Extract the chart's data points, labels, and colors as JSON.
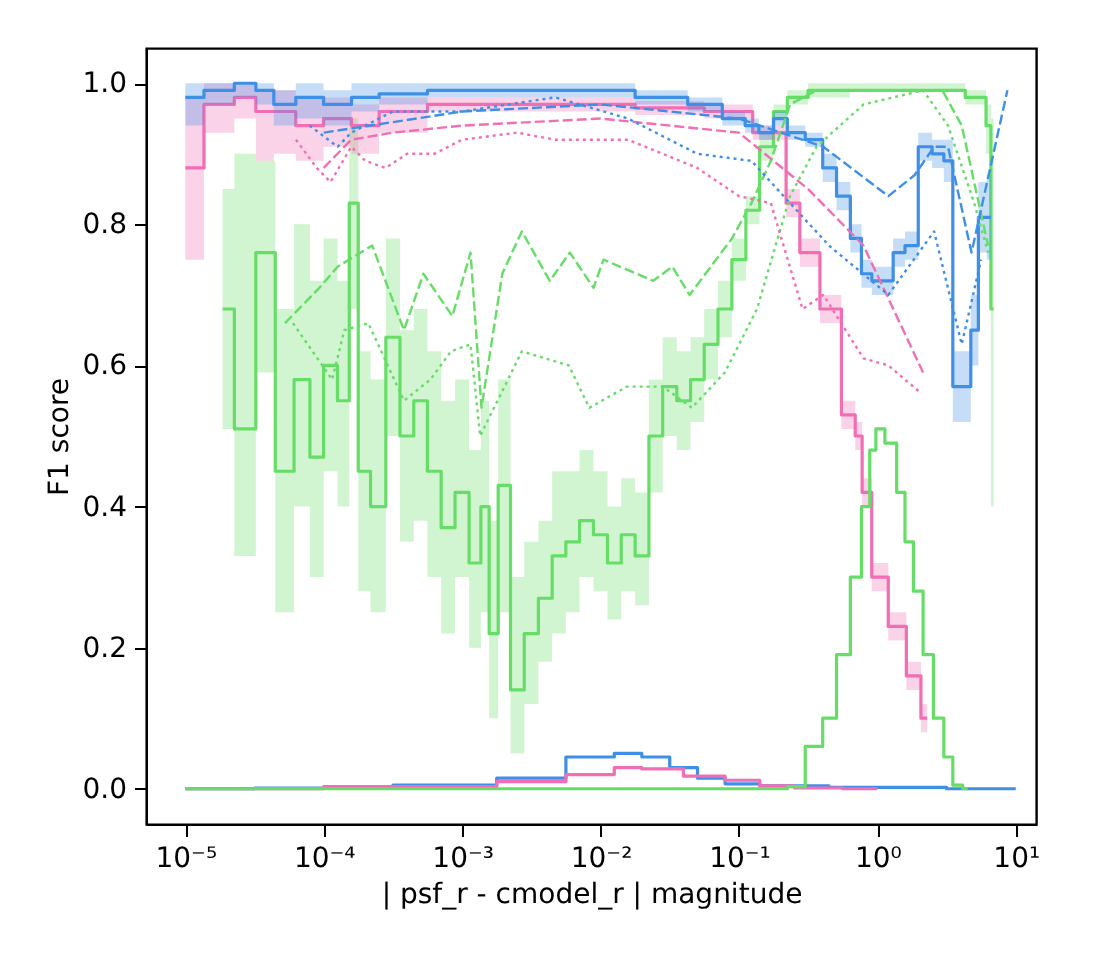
{
  "chart_data": {
    "type": "step",
    "xlabel": "| psf_r - cmodel_r | magnitude",
    "ylabel": "F1 score",
    "log": "x",
    "grid": false,
    "xlim": [
      5.2e-06,
      14
    ],
    "ylim": [
      -0.05,
      1.05
    ],
    "xticks": [
      {
        "value": 1e-05,
        "label": "10⁻⁵"
      },
      {
        "value": 0.0001,
        "label": "10⁻⁴"
      },
      {
        "value": 0.001,
        "label": "10⁻³"
      },
      {
        "value": 0.01,
        "label": "10⁻²"
      },
      {
        "value": 0.1,
        "label": "10⁻¹"
      },
      {
        "value": 1,
        "label": "10⁰"
      },
      {
        "value": 10,
        "label": "10¹"
      }
    ],
    "yticks": [
      {
        "value": 0,
        "label": "0.0"
      },
      {
        "value": 0.2,
        "label": "0.2"
      },
      {
        "value": 0.4,
        "label": "0.4"
      },
      {
        "value": 0.6,
        "label": "0.6"
      },
      {
        "value": 0.8,
        "label": "0.8"
      },
      {
        "value": 1,
        "label": "1.0"
      }
    ],
    "series": [
      {
        "color": "#66dd66",
        "line_style": "solid",
        "x": [
          1.86e-05,
          2.75e-05,
          3.8e-05,
          5.25e-05,
          7.1e-05,
          8.9e-05,
          0.000112,
          0.000141,
          0.000166,
          0.00019,
          0.00025,
          0.000316,
          0.0004,
          0.0005,
          0.00063,
          0.00079,
          0.001,
          0.00126,
          0.00148,
          0.00166,
          0.002,
          0.0025,
          0.00316,
          0.004,
          0.005,
          0.0063,
          0.0079,
          0.01,
          0.0126,
          0.0158,
          0.02,
          0.025,
          0.0316,
          0.04,
          0.05,
          0.063,
          0.079,
          0.1,
          0.126,
          0.158,
          0.2,
          0.25,
          0.4,
          1,
          3.16,
          5.89,
          6.31,
          6.92
        ],
        "values": [
          0.68,
          0.51,
          0.76,
          0.45,
          0.58,
          0.47,
          0.6,
          0.55,
          0.83,
          0.45,
          0.4,
          0.64,
          0.5,
          0.55,
          0.45,
          0.37,
          0.42,
          0.32,
          0.4,
          0.22,
          0.43,
          0.14,
          0.22,
          0.27,
          0.33,
          0.35,
          0.38,
          0.36,
          0.32,
          0.36,
          0.33,
          0.5,
          0.57,
          0.55,
          0.58,
          0.63,
          0.68,
          0.75,
          0.82,
          0.91,
          0.96,
          0.98,
          0.99,
          0.99,
          0.99,
          0.98,
          0.94,
          0.68
        ],
        "lower": [
          0.51,
          0.33,
          0.59,
          0.25,
          0.4,
          0.3,
          0.45,
          0.4,
          0.68,
          0.28,
          0.25,
          0.5,
          0.35,
          0.38,
          0.3,
          0.22,
          0.3,
          0.2,
          0.25,
          0.1,
          0.25,
          0.05,
          0.12,
          0.18,
          0.22,
          0.25,
          0.3,
          0.28,
          0.24,
          0.28,
          0.26,
          0.42,
          0.5,
          0.48,
          0.52,
          0.58,
          0.64,
          0.72,
          0.8,
          0.89,
          0.95,
          0.97,
          0.98,
          0.99,
          0.99,
          0.97,
          0.9,
          0.4
        ],
        "upper": [
          0.85,
          0.9,
          0.89,
          0.68,
          0.8,
          0.72,
          0.78,
          0.72,
          0.95,
          0.62,
          0.58,
          0.78,
          0.65,
          0.68,
          0.62,
          0.55,
          0.58,
          0.48,
          0.55,
          0.38,
          0.58,
          0.3,
          0.35,
          0.38,
          0.45,
          0.45,
          0.48,
          0.45,
          0.4,
          0.44,
          0.42,
          0.58,
          0.64,
          0.62,
          0.64,
          0.68,
          0.72,
          0.78,
          0.84,
          0.93,
          0.97,
          0.99,
          1.0,
          1.0,
          1.0,
          0.99,
          0.97,
          0.95
        ]
      },
      {
        "color": "#f26eb4",
        "line_style": "solid",
        "x": [
          1e-05,
          1.86e-05,
          2.75e-05,
          3.8e-05,
          5e-05,
          7.9e-05,
          0.000126,
          0.0002,
          0.000316,
          0.001,
          0.00316,
          0.01,
          0.0316,
          0.1,
          0.158,
          0.2,
          0.24,
          0.316,
          0.468,
          0.646,
          0.741,
          0.813,
          1.02,
          1.41,
          1.86,
          2.29
        ],
        "values": [
          0.88,
          0.97,
          0.98,
          0.96,
          0.96,
          0.94,
          0.95,
          0.94,
          0.96,
          0.97,
          0.97,
          0.97,
          0.965,
          0.96,
          0.93,
          0.93,
          0.83,
          0.76,
          0.68,
          0.53,
          0.5,
          0.42,
          0.3,
          0.23,
          0.16,
          0.1
        ],
        "lower": [
          0.75,
          0.93,
          0.95,
          0.89,
          0.9,
          0.89,
          0.91,
          0.9,
          0.93,
          0.96,
          0.96,
          0.96,
          0.955,
          0.95,
          0.92,
          0.92,
          0.81,
          0.74,
          0.66,
          0.51,
          0.48,
          0.4,
          0.28,
          0.21,
          0.14,
          0.08
        ],
        "upper": [
          0.98,
          1.0,
          1.0,
          0.99,
          0.99,
          0.98,
          0.98,
          0.97,
          0.98,
          0.98,
          0.98,
          0.98,
          0.975,
          0.97,
          0.94,
          0.94,
          0.85,
          0.78,
          0.7,
          0.55,
          0.52,
          0.44,
          0.32,
          0.25,
          0.18,
          0.12
        ]
      },
      {
        "color": "#3f8fe6",
        "line_style": "solid",
        "x": [
          1e-05,
          1.86e-05,
          2.75e-05,
          3.8e-05,
          5e-05,
          7.9e-05,
          0.000126,
          0.0002,
          0.000316,
          0.001,
          0.00316,
          0.01,
          0.0316,
          0.0575,
          0.1,
          0.123,
          0.158,
          0.2,
          0.25,
          0.363,
          0.447,
          0.575,
          0.708,
          0.832,
          1,
          1.2,
          1.41,
          1.78,
          2.19,
          2.82,
          3.24,
          3.8,
          4.47,
          5.01,
          5.75,
          6.61
        ],
        "values": [
          0.98,
          0.99,
          1.0,
          0.99,
          0.97,
          0.98,
          0.97,
          0.98,
          0.985,
          0.99,
          0.99,
          0.99,
          0.98,
          0.97,
          0.95,
          0.94,
          0.93,
          0.95,
          0.93,
          0.92,
          0.88,
          0.84,
          0.78,
          0.73,
          0.72,
          0.72,
          0.76,
          0.77,
          0.91,
          0.9,
          0.89,
          0.57,
          0.57,
          0.65,
          0.81,
          0.81
        ],
        "lower": [
          0.94,
          0.97,
          0.98,
          0.97,
          0.94,
          0.95,
          0.94,
          0.96,
          0.97,
          0.98,
          0.98,
          0.98,
          0.97,
          0.96,
          0.94,
          0.93,
          0.92,
          0.94,
          0.92,
          0.91,
          0.86,
          0.82,
          0.76,
          0.71,
          0.7,
          0.7,
          0.74,
          0.75,
          0.89,
          0.88,
          0.86,
          0.52,
          0.52,
          0.6,
          0.76,
          0.75
        ],
        "upper": [
          1.0,
          1.0,
          1.0,
          1.0,
          0.99,
          1.0,
          0.99,
          1.0,
          1.0,
          1.0,
          1.0,
          1.0,
          0.99,
          0.98,
          0.96,
          0.95,
          0.94,
          0.96,
          0.94,
          0.93,
          0.9,
          0.86,
          0.8,
          0.75,
          0.74,
          0.74,
          0.78,
          0.79,
          0.93,
          0.92,
          0.92,
          0.62,
          0.62,
          0.7,
          0.86,
          0.87
        ]
      },
      {
        "type": "line",
        "color": "#66dd66",
        "line_style": "dashed",
        "x": [
          5.25e-05,
          9.3e-05,
          0.000126,
          0.000224,
          0.00038,
          0.000525,
          0.00085,
          0.00115,
          0.00138,
          0.00195,
          0.0027,
          0.0043,
          0.006,
          0.0089,
          0.0105,
          0.024,
          0.033,
          0.044,
          0.089,
          0.123,
          0.17,
          0.234,
          0.363,
          1,
          2.95,
          4.07,
          6.31
        ],
        "values": [
          0.66,
          0.71,
          0.74,
          0.77,
          0.65,
          0.73,
          0.67,
          0.76,
          0.54,
          0.73,
          0.79,
          0.72,
          0.76,
          0.71,
          0.75,
          0.72,
          0.74,
          0.7,
          0.78,
          0.83,
          0.89,
          0.97,
          0.99,
          0.99,
          0.99,
          0.94,
          0.77
        ]
      },
      {
        "type": "line",
        "color": "#66dd66",
        "line_style": "dotted",
        "x": [
          6e-05,
          8.3e-05,
          0.000115,
          0.000141,
          0.00021,
          0.00038,
          0.00059,
          0.00083,
          0.00115,
          0.00135,
          0.0027,
          0.0059,
          0.0083,
          0.0155,
          0.0282,
          0.0457,
          0.079,
          0.135,
          0.234,
          0.363,
          0.794,
          2.14,
          3.24,
          5.01,
          6.31
        ],
        "values": [
          0.66,
          0.62,
          0.58,
          0.65,
          0.66,
          0.55,
          0.58,
          0.62,
          0.63,
          0.5,
          0.62,
          0.6,
          0.54,
          0.57,
          0.57,
          0.54,
          0.59,
          0.68,
          0.84,
          0.91,
          0.97,
          0.99,
          0.94,
          0.83,
          0.76
        ]
      },
      {
        "type": "line",
        "color": "#f26eb4",
        "line_style": "dashed",
        "x": [
          0.0001,
          0.000158,
          0.000316,
          0.001,
          0.01,
          0.1,
          0.316,
          0.794,
          2.14
        ],
        "values": [
          0.88,
          0.92,
          0.93,
          0.94,
          0.95,
          0.93,
          0.85,
          0.77,
          0.59
        ]
      },
      {
        "type": "line",
        "color": "#f26eb4",
        "line_style": "dotted",
        "x": [
          6.3e-05,
          8.9e-05,
          0.000112,
          0.000158,
          0.0002,
          0.00028,
          0.0004,
          0.00063,
          0.001,
          0.0025,
          0.0047,
          0.0158,
          0.05,
          0.1,
          0.17,
          0.288,
          0.407,
          0.794,
          1.2,
          2.09
        ],
        "values": [
          0.92,
          0.88,
          0.86,
          0.91,
          0.89,
          0.88,
          0.9,
          0.9,
          0.92,
          0.93,
          0.92,
          0.92,
          0.88,
          0.84,
          0.83,
          0.68,
          0.7,
          0.61,
          0.6,
          0.56
        ]
      },
      {
        "type": "line",
        "color": "#3f8fe6",
        "line_style": "dashed",
        "x": [
          0.0001,
          0.001,
          0.01,
          0.1,
          0.407,
          1.2,
          1.86,
          2.57,
          3.24,
          4.79,
          8.7
        ],
        "values": [
          0.93,
          0.96,
          0.97,
          0.95,
          0.91,
          0.84,
          0.87,
          0.91,
          0.91,
          0.76,
          0.99
        ]
      },
      {
        "type": "line",
        "color": "#3f8fe6",
        "line_style": "dotted",
        "x": [
          7.9e-05,
          0.000126,
          0.000158,
          0.000316,
          0.001,
          0.0047,
          0.0158,
          0.05,
          0.123,
          0.447,
          1.2,
          2.57,
          4.07,
          5.62
        ],
        "values": [
          0.94,
          0.91,
          0.93,
          0.96,
          0.96,
          0.98,
          0.95,
          0.9,
          0.89,
          0.77,
          0.7,
          0.79,
          0.63,
          0.75
        ]
      },
      {
        "color": "#3f8fe6",
        "line_style": "solid",
        "x": [
          1e-05,
          0.0001,
          0.001,
          0.00316,
          0.01,
          0.0158,
          0.025,
          0.04,
          0.063,
          0.1,
          0.2,
          1,
          10
        ],
        "values": [
          0,
          0.001,
          0.005,
          0.015,
          0.045,
          0.05,
          0.045,
          0.03,
          0.015,
          0.007,
          0.004,
          0.002,
          0
        ]
      },
      {
        "color": "#f26eb4",
        "line_style": "solid",
        "x": [
          1e-05,
          0.001,
          0.00316,
          0.01,
          0.0158,
          0.025,
          0.063,
          0.1,
          0.2,
          0.316,
          1
        ],
        "values": [
          0,
          0.003,
          0.01,
          0.02,
          0.03,
          0.028,
          0.018,
          0.012,
          0.004,
          0.001,
          0
        ]
      },
      {
        "color": "#66dd66",
        "line_style": "solid",
        "x": [
          1e-05,
          0.2,
          0.25,
          0.363,
          0.447,
          0.575,
          0.708,
          0.832,
          0.933,
          1.02,
          1.26,
          1.51,
          1.66,
          2.0,
          2.29,
          2.82,
          3.24,
          3.8,
          4.5
        ],
        "values": [
          0,
          0,
          0.003,
          0.06,
          0.1,
          0.19,
          0.3,
          0.4,
          0.48,
          0.51,
          0.49,
          0.42,
          0.35,
          0.28,
          0.19,
          0.1,
          0.045,
          0.005,
          0
        ]
      }
    ]
  }
}
